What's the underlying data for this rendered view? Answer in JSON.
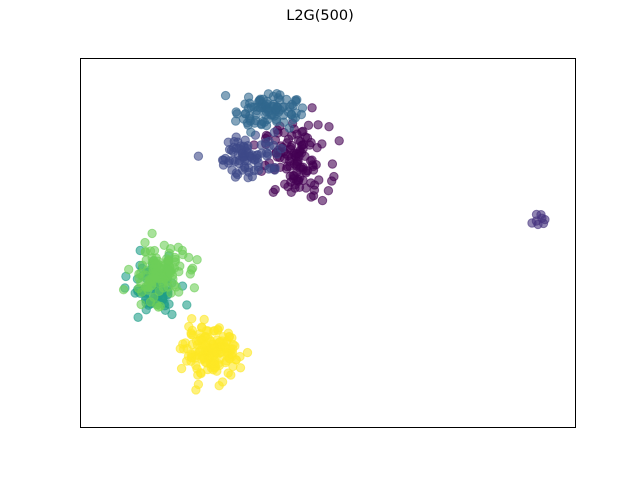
{
  "chart_data": {
    "type": "scatter",
    "title": "L2G(500)",
    "xlabel": "",
    "ylabel": "",
    "axes_ticks": "none",
    "grid": false,
    "legend": "none",
    "xlim": [
      0,
      100
    ],
    "ylim": [
      0,
      100
    ],
    "marker_alpha": 0.6,
    "clusters": [
      {
        "color": "#440154",
        "center": [
          43.5,
          72
        ],
        "spread": [
          6.0,
          9.0
        ],
        "count": 120
      },
      {
        "color": "#3e4a89",
        "center": [
          34.5,
          74
        ],
        "spread": [
          6.0,
          5.5
        ],
        "count": 80
      },
      {
        "color": "#31688e",
        "center": [
          37.5,
          86
        ],
        "spread": [
          5.5,
          4.5
        ],
        "count": 90
      },
      {
        "color": "#46337e",
        "center": [
          92.7,
          56.5
        ],
        "spread": [
          1.5,
          2.0
        ],
        "count": 8
      },
      {
        "color": "#1f9e89",
        "center": [
          15.0,
          37.5
        ],
        "spread": [
          4.5,
          7.0
        ],
        "count": 80
      },
      {
        "color": "#6ece58",
        "center": [
          15.5,
          42.0
        ],
        "spread": [
          5.0,
          6.5
        ],
        "count": 120
      },
      {
        "color": "#fde725",
        "center": [
          26.5,
          20.0
        ],
        "spread": [
          5.0,
          6.0
        ],
        "count": 160
      }
    ]
  }
}
